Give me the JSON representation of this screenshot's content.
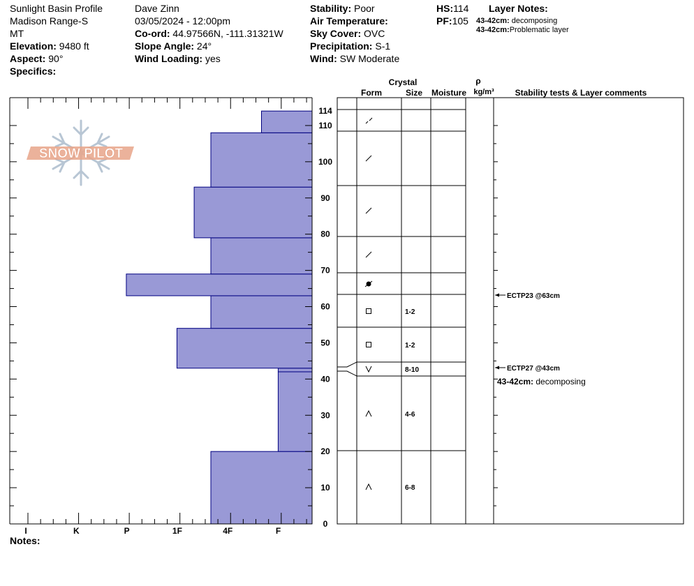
{
  "header": {
    "col1": {
      "line1": "Sunlight Basin Profile",
      "line2": "Madison Range-S",
      "line3": "MT",
      "elevation_label": "Elevation:",
      "elevation_value": " 9480 ft",
      "aspect_label": "Aspect:",
      "aspect_value": " 90°",
      "specifics_label": "Specifics:"
    },
    "col2": {
      "observer": "Dave Zinn",
      "datetime": "03/05/2024 - 12:00pm",
      "coord_label": "Co-ord:",
      "coord_value": " 44.97566N, -111.31321W",
      "slope_label": "Slope Angle:",
      "slope_value": " 24°",
      "wind_loading_label": "Wind Loading:",
      "wind_loading_value": " yes"
    },
    "col3": {
      "stability_label": "Stability:",
      "stability_value": " Poor",
      "air_temp_label": "Air Temperature:",
      "sky_label": "Sky Cover:",
      "sky_value": " OVC",
      "precip_label": "Precipitation:",
      "precip_value": " S-1",
      "wind_label": "Wind:",
      "wind_value": "  SW Moderate"
    },
    "col4": {
      "hs_label": "HS:",
      "hs_value": "114",
      "pf_label": "PF:",
      "pf_value": "105",
      "layer_notes_title": "Layer Notes:",
      "note1_label": "43-42cm:",
      "note1_value": " decomposing",
      "note2_label": "43-42cm:",
      "note2_value": "Problematic layer"
    }
  },
  "logo_text": "SNOW PILOT",
  "column_headers": {
    "crystal": "Crystal",
    "form": "Form",
    "size": "Size",
    "moisture": "Moisture",
    "rho": "ρ",
    "density_unit": "kg/m³",
    "stability": "Stability tests & Layer comments"
  },
  "notes_label": "Notes:",
  "colors": {
    "hardness_fill": "#9999d6",
    "hardness_stroke": "#000080",
    "logo_text": "#e8a58a",
    "logo_flake": "#b8c6d4"
  },
  "chart_data": {
    "type": "bar",
    "orientation": "horizontal-step",
    "hardness_categories": [
      "I",
      "K",
      "P",
      "1F",
      "4F",
      "F"
    ],
    "hardness_axis_note": "hardness increases leftward from right edge (F) to I",
    "y_axis": {
      "min": 0,
      "max": 114,
      "ticks": [
        0,
        10,
        20,
        30,
        40,
        50,
        60,
        70,
        80,
        90,
        100,
        110,
        114
      ],
      "unit": "cm"
    },
    "layers": [
      {
        "bottom": 0,
        "top": 20,
        "hardness": "4F",
        "hardness_index": 2
      },
      {
        "bottom": 20,
        "top": 42,
        "hardness": "F-",
        "hardness_index": 0.67
      },
      {
        "bottom": 42,
        "top": 43,
        "hardness": "F-",
        "hardness_index": 0.67
      },
      {
        "bottom": 43,
        "top": 54,
        "hardness": "P-",
        "hardness_index": 2.67
      },
      {
        "bottom": 54,
        "top": 63,
        "hardness": "4F",
        "hardness_index": 2
      },
      {
        "bottom": 63,
        "top": 69,
        "hardness": "P",
        "hardness_index": 3.67
      },
      {
        "bottom": 69,
        "top": 79,
        "hardness": "4F",
        "hardness_index": 2
      },
      {
        "bottom": 79,
        "top": 93,
        "hardness": "1F-",
        "hardness_index": 2.33
      },
      {
        "bottom": 93,
        "top": 108,
        "hardness": "4F",
        "hardness_index": 2
      },
      {
        "bottom": 108,
        "top": 114,
        "hardness": "F+",
        "hardness_index": 1
      }
    ],
    "crystal_rows": [
      {
        "bottom": 110,
        "top": 114,
        "form": "precip-partial",
        "size": ""
      },
      {
        "bottom": 93,
        "top": 108,
        "form": "decomposing",
        "size": ""
      },
      {
        "bottom": 79,
        "top": 93,
        "form": "decomposing",
        "size": ""
      },
      {
        "bottom": 69,
        "top": 79,
        "form": "decomposing",
        "size": ""
      },
      {
        "bottom": 63,
        "top": 69,
        "form": "melt-freeze",
        "size": ""
      },
      {
        "bottom": 54,
        "top": 63,
        "form": "faceted",
        "size": "1-2"
      },
      {
        "bottom": 45,
        "top": 54,
        "form": "faceted",
        "size": "1-2"
      },
      {
        "bottom": 40,
        "top": 45,
        "form": "surface-hoar",
        "size": "8-10"
      },
      {
        "bottom": 20,
        "top": 40,
        "form": "depth-hoar",
        "size": "4-6"
      },
      {
        "bottom": 0,
        "top": 20,
        "form": "depth-hoar",
        "size": "6-8"
      }
    ],
    "crystal_boundaries": [
      114,
      108,
      93,
      79,
      69,
      63,
      54,
      45,
      40,
      20
    ],
    "stability_tests": [
      {
        "label": "ECTP23 @63cm",
        "depth": 63
      },
      {
        "label": "ECTP27 @43cm",
        "depth": 43
      }
    ],
    "layer_comment": {
      "label": "43-42cm:",
      "value": " decomposing",
      "depth": 40
    }
  }
}
